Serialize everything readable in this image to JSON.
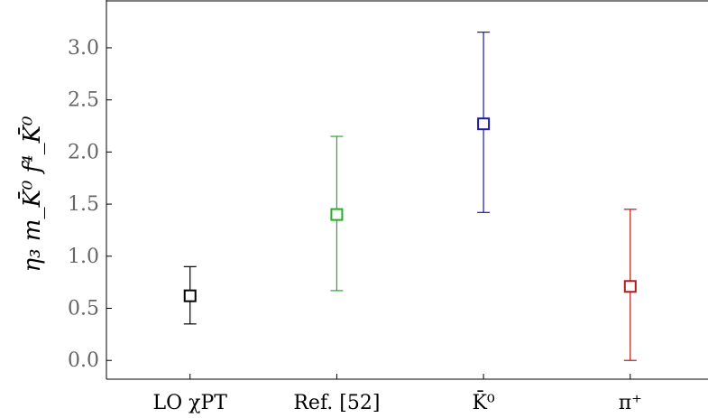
{
  "chart_data": {
    "type": "scatter",
    "ylabel": "η₃ m_K̄⁰ f⁴_K̄⁰",
    "ylim": [
      -0.18,
      3.45
    ],
    "yticks": [
      "0.0",
      "0.5",
      "1.0",
      "1.5",
      "2.0",
      "2.5",
      "3.0"
    ],
    "categories": [
      "LO χPT",
      "Ref. [52]",
      "K̄⁰",
      "π⁺"
    ],
    "points": [
      {
        "category": "LO χPT",
        "value": 0.62,
        "lower": 0.35,
        "upper": 0.9,
        "color": "#000000"
      },
      {
        "category": "Ref. [52]",
        "value": 1.4,
        "lower": 0.67,
        "upper": 2.15,
        "color": "#22b022"
      },
      {
        "category": "K̄⁰",
        "value": 2.27,
        "lower": 1.42,
        "upper": 3.15,
        "color": "#1a1aa6"
      },
      {
        "category": "π⁺",
        "value": 0.71,
        "lower": 0.0,
        "upper": 1.45,
        "color": "#b01a1a"
      }
    ],
    "grid": false,
    "marker": "open-square"
  }
}
